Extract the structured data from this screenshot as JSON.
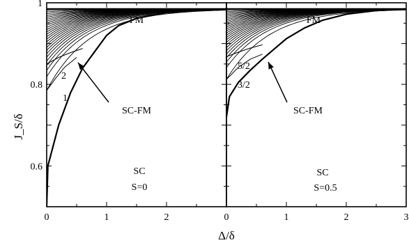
{
  "chart_data": [
    {
      "type": "line",
      "panel": "left",
      "xlim": [
        0,
        3
      ],
      "ylim": [
        0.5,
        1.0
      ],
      "x_ticks": [
        "0",
        "1",
        "2"
      ],
      "y_ticks": [
        "0.6",
        "0.8",
        "1"
      ],
      "ylabel": "J_S/δ",
      "region_labels": {
        "top": "FM",
        "bottom_1": "SC",
        "bottom_2": "S=0",
        "boundary": "SC-FM"
      },
      "curve_labels": [
        "1",
        "2"
      ],
      "fm_limit": 0.985,
      "series": [
        {
          "name": "SC-FM",
          "points": [
            [
              0,
              0.5
            ],
            [
              0.02,
              0.6
            ],
            [
              0.2,
              0.7
            ],
            [
              0.4,
              0.78
            ],
            [
              0.6,
              0.84
            ],
            [
              0.8,
              0.88
            ],
            [
              1.0,
              0.92
            ],
            [
              1.2,
              0.944
            ],
            [
              1.5,
              0.962
            ],
            [
              2.0,
              0.976
            ],
            [
              2.5,
              0.982
            ],
            [
              3.0,
              0.985
            ]
          ]
        },
        {
          "name": "1",
          "points": [
            [
              0,
              0.785
            ],
            [
              0.15,
              0.815
            ],
            [
              0.3,
              0.842
            ],
            [
              0.5,
              0.866
            ]
          ]
        },
        {
          "name": "2",
          "points": [
            [
              0,
              0.85
            ],
            [
              0.2,
              0.866
            ],
            [
              0.4,
              0.878
            ],
            [
              0.6,
              0.888
            ]
          ]
        }
      ]
    },
    {
      "type": "line",
      "panel": "right",
      "xlim": [
        0,
        3
      ],
      "ylim": [
        0.5,
        1.0
      ],
      "x_ticks": [
        "0",
        "1",
        "2",
        "3"
      ],
      "region_labels": {
        "top": "FM",
        "bottom_1": "SC",
        "bottom_2": "S=0.5",
        "boundary": "SC-FM"
      },
      "curve_labels": [
        "3/2",
        "5/2"
      ],
      "fm_limit": 0.985,
      "series": [
        {
          "name": "SC-FM",
          "points": [
            [
              0,
              0.72
            ],
            [
              0.05,
              0.77
            ],
            [
              0.2,
              0.805
            ],
            [
              0.4,
              0.835
            ],
            [
              0.6,
              0.862
            ],
            [
              0.8,
              0.887
            ],
            [
              1.0,
              0.912
            ],
            [
              1.3,
              0.938
            ],
            [
              1.6,
              0.957
            ],
            [
              2.0,
              0.972
            ],
            [
              2.5,
              0.981
            ],
            [
              3.0,
              0.985
            ]
          ]
        },
        {
          "name": "3/2",
          "points": [
            [
              0,
              0.812
            ],
            [
              0.2,
              0.842
            ],
            [
              0.4,
              0.862
            ],
            [
              0.6,
              0.874
            ]
          ]
        },
        {
          "name": "5/2",
          "points": [
            [
              0,
              0.868
            ],
            [
              0.2,
              0.879
            ],
            [
              0.4,
              0.889
            ],
            [
              0.6,
              0.897
            ]
          ]
        }
      ]
    }
  ],
  "xlabel": "Δ/δ"
}
